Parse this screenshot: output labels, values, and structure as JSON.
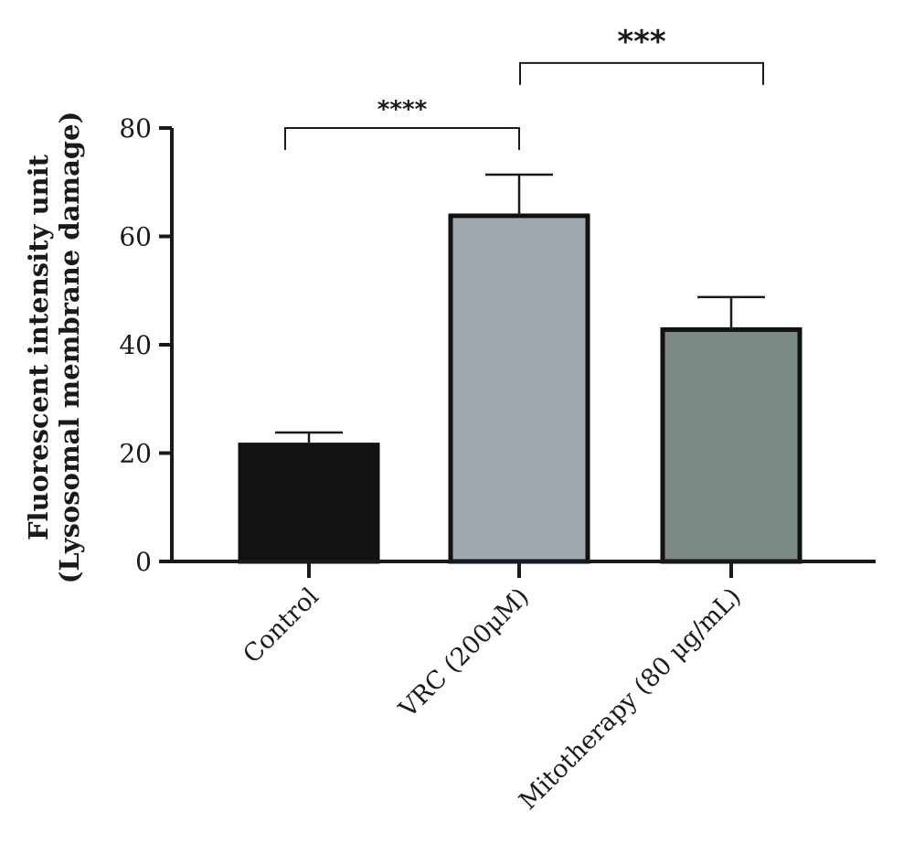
{
  "chart_data": {
    "type": "bar",
    "title": "",
    "xlabel": "",
    "ylabel_lines": [
      "Fluorescent intensity unit",
      "(Lysosomal membrane damage)"
    ],
    "ylim": [
      0,
      80
    ],
    "yticks": [
      "0",
      "20",
      "40",
      "60",
      "80"
    ],
    "categories": [
      "Control",
      "VRC (200μM)",
      "Mitotherapy (80 μg/mL)"
    ],
    "values": [
      21.5,
      63.8,
      42.8
    ],
    "errors": [
      2.3,
      7.6,
      6.0
    ],
    "colors": [
      "#131313",
      "#9ea9b0",
      "#7b8a87"
    ],
    "significance": [
      {
        "from": 0,
        "to": 1,
        "label": "****",
        "level": 80
      },
      {
        "from": 1,
        "to": 2,
        "label": "***",
        "level": 92
      }
    ]
  }
}
